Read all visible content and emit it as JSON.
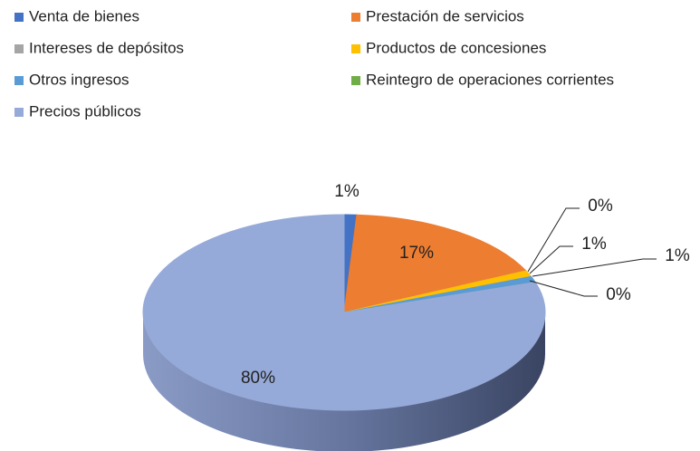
{
  "chart_data": {
    "type": "pie",
    "three_d": true,
    "categories": [
      "Venta de bienes",
      "Prestación de servicios",
      "Intereses de depósitos",
      "Productos de concesiones",
      "Otros ingresos",
      "Reintegro de operaciones corrientes",
      "Precios públicos"
    ],
    "values": [
      1,
      17,
      0,
      1,
      1,
      0,
      80
    ],
    "value_labels": [
      "1%",
      "17%",
      "0%",
      "1%",
      "1%",
      "0%",
      "80%"
    ],
    "colors": [
      "#4472c4",
      "#ed7d31",
      "#a5a5a5",
      "#ffc000",
      "#5b9bd5",
      "#70ad47",
      "#96aad9"
    ],
    "legend": "top"
  }
}
